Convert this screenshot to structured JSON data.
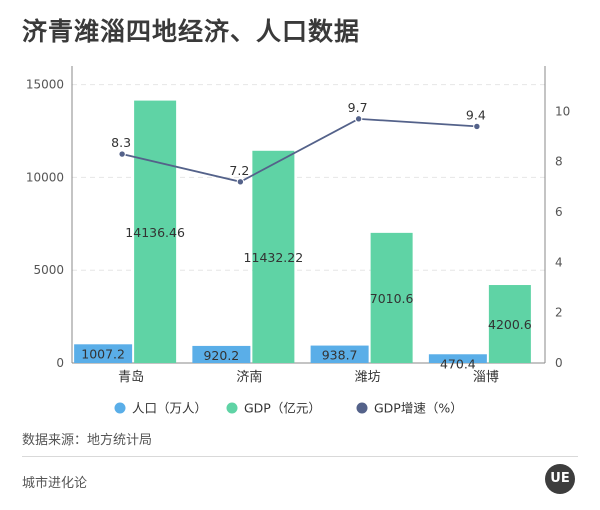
{
  "title": "济青潍淄四地经济、人口数据",
  "source_note": "数据来源：地方统计局",
  "brand_text": "城市进化论",
  "logo_text": "UE",
  "colors": {
    "population": "#5aaee8",
    "gdp": "#5fd3a5",
    "growth": "#54628a",
    "grid": "#e6e6e6",
    "axis_text": "#555555"
  },
  "chart_data": {
    "type": "bar",
    "categories": [
      "青岛",
      "济南",
      "潍坊",
      "淄博"
    ],
    "series": [
      {
        "name": "人口（万人）",
        "type": "bar",
        "axis": "left",
        "values": [
          1007.2,
          920.2,
          938.7,
          470.4
        ]
      },
      {
        "name": "GDP（亿元）",
        "type": "bar",
        "axis": "left",
        "values": [
          14136.46,
          11432.22,
          7010.6,
          4200.6
        ]
      },
      {
        "name": "GDP增速（%）",
        "type": "line",
        "axis": "right",
        "values": [
          8.3,
          7.2,
          9.7,
          9.4
        ]
      }
    ],
    "data_labels": {
      "population": [
        "1007.2",
        "920.2",
        "938.7",
        "470.4"
      ],
      "gdp": [
        "14136.46",
        "11432.22",
        "7010.6",
        "4200.6"
      ],
      "growth": [
        "8.3",
        "7.2",
        "9.7",
        "9.4"
      ]
    },
    "y_left": {
      "min": 0,
      "max": 16000,
      "ticks": [
        0,
        5000,
        10000,
        15000
      ]
    },
    "y_right": {
      "min": 0,
      "max": 11.8,
      "ticks": [
        0,
        2,
        4,
        6,
        8,
        10
      ]
    },
    "grid": true,
    "legend_position": "bottom"
  }
}
